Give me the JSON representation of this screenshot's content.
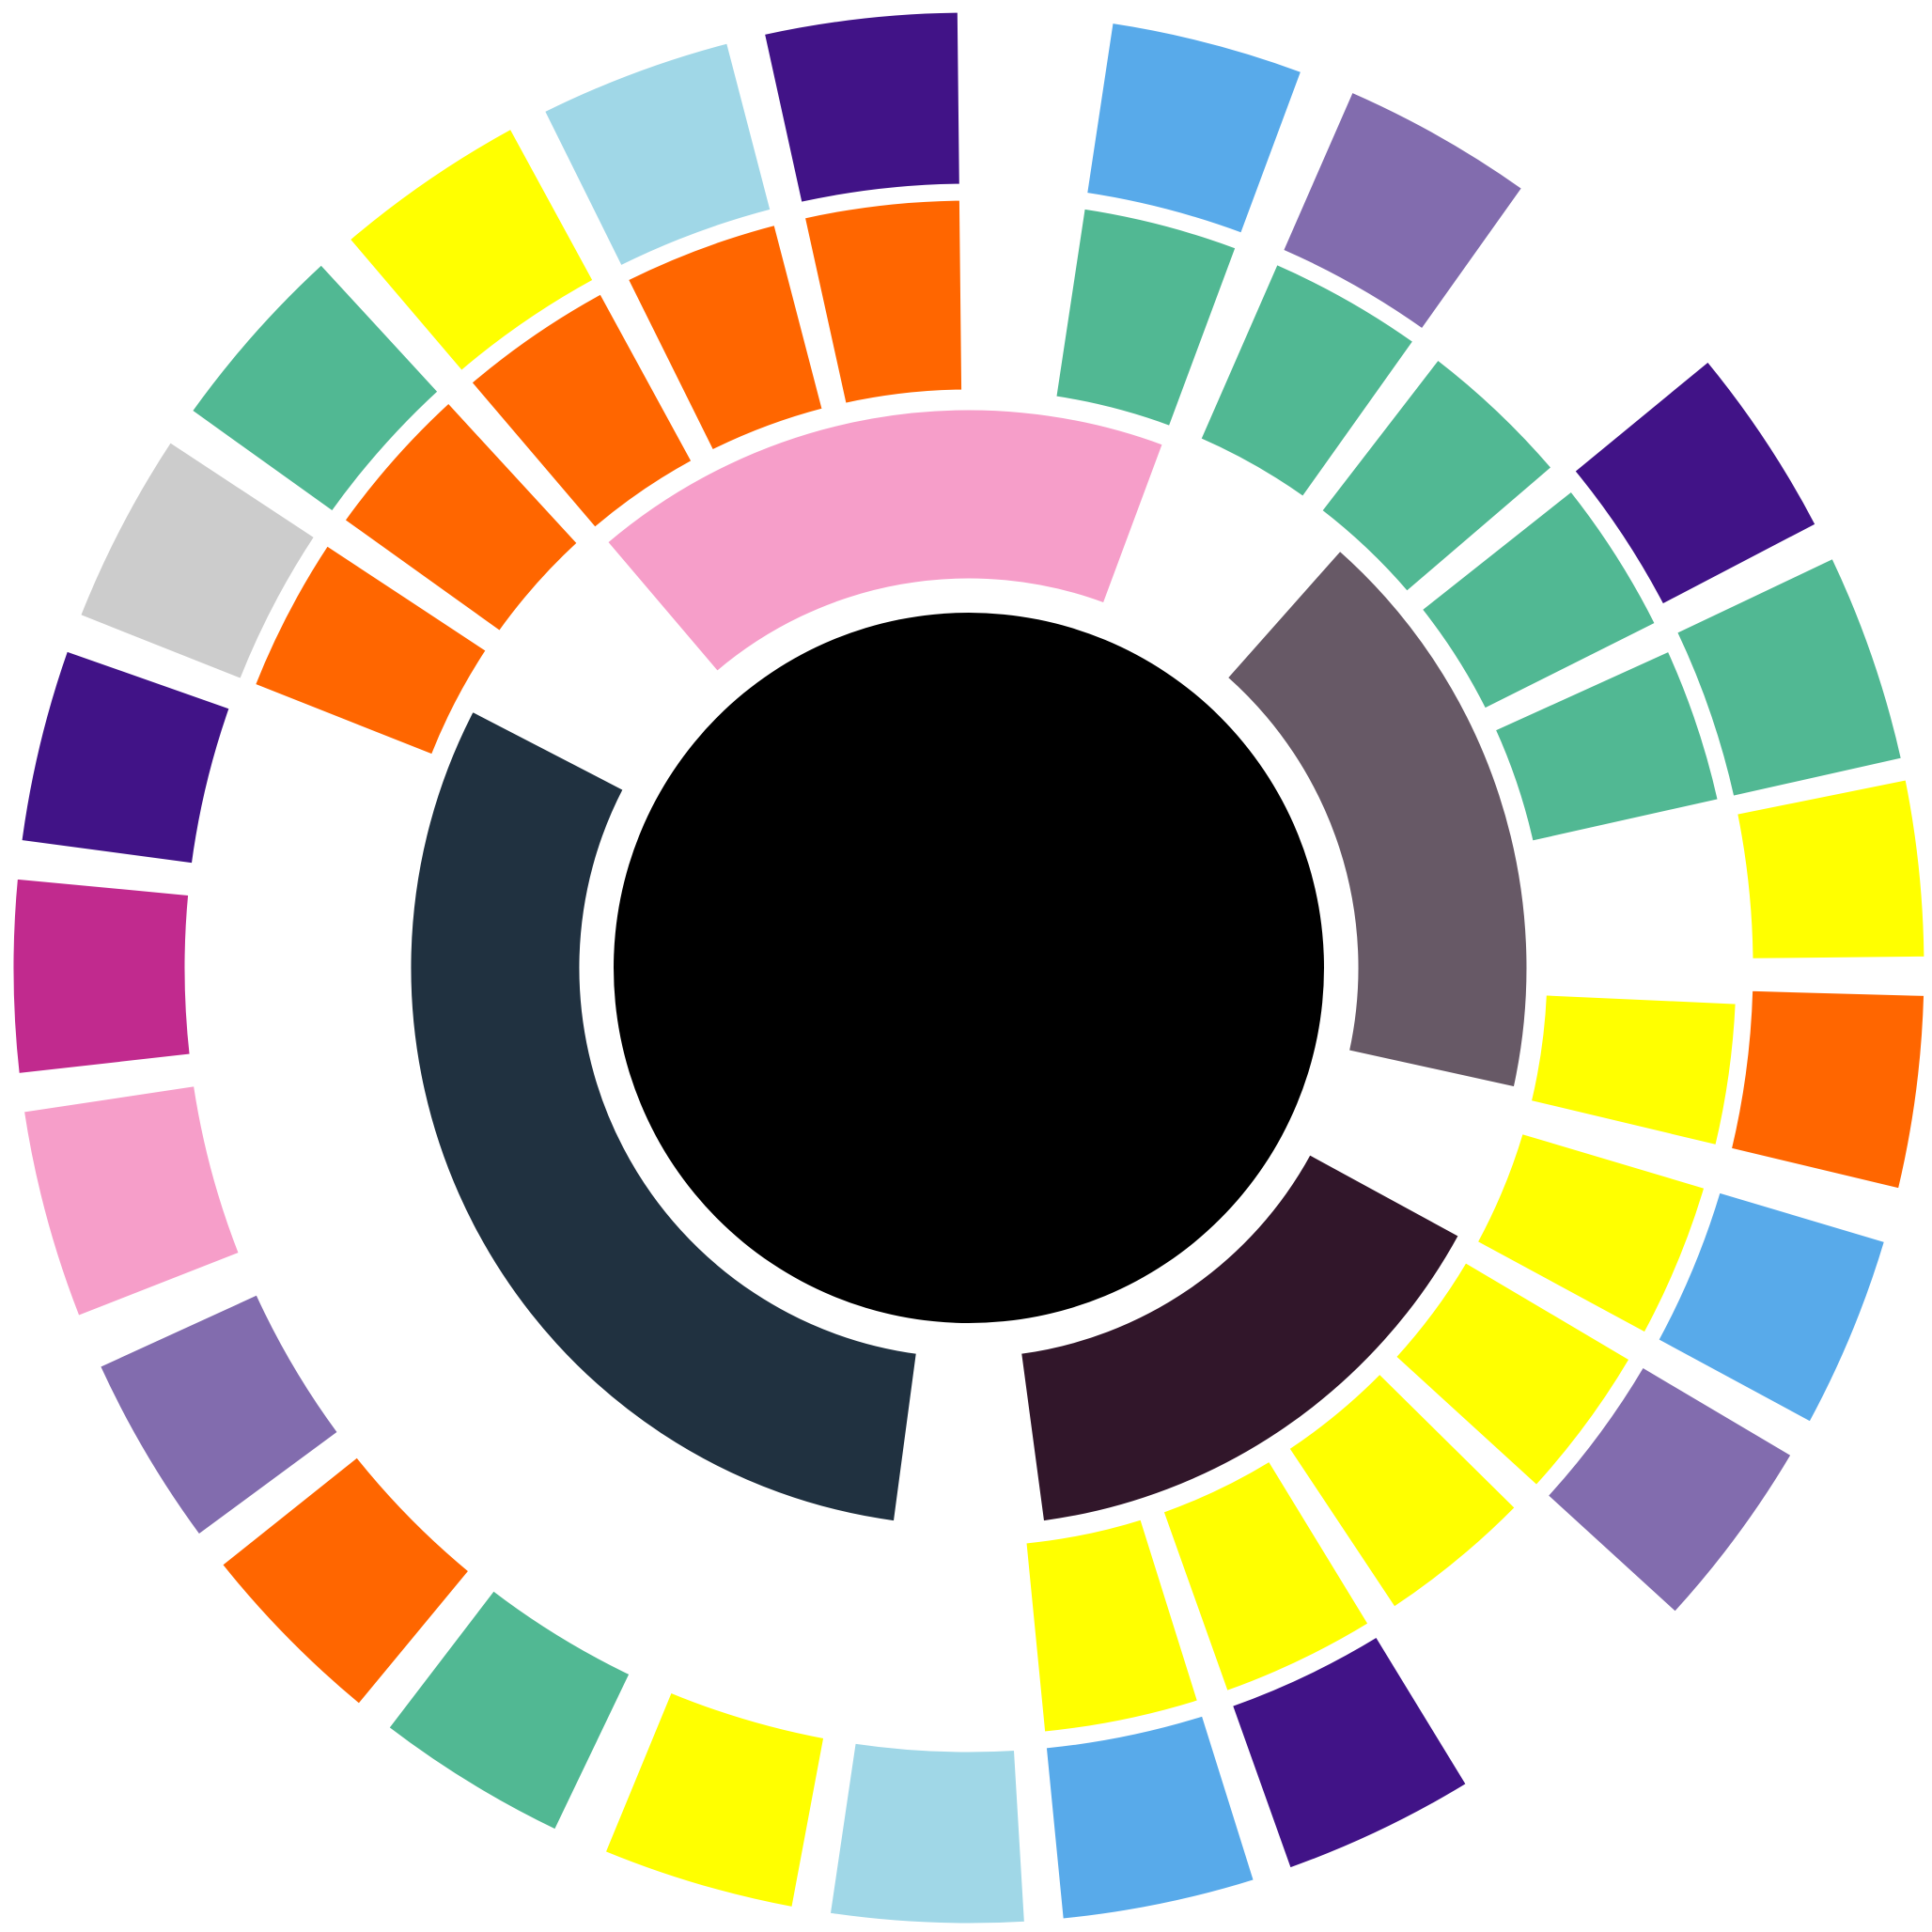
{
  "chart_data": {
    "type": "sunburst",
    "title": "",
    "labels": "none",
    "center": {
      "color": "#000000"
    },
    "palette": {
      "pink": "#f69ec9",
      "slate": "#675966",
      "navy": "#203140",
      "plum": "#31162a",
      "orange": "#ff6600",
      "teal": "#51b893",
      "yellow": "#ffff00",
      "sky": "#58aaea",
      "lilac": "#826cae",
      "indigo": "#411387",
      "powder": "#a0d7e7",
      "magenta": "#c12a8e",
      "grey": "#cccccc"
    },
    "rings": [
      {
        "level": 1,
        "segments": [
          {
            "start": 319,
            "end": 381,
            "color": "pink"
          },
          {
            "start": 41,
            "end": 103,
            "color": "slate"
          },
          {
            "start": 118,
            "end": 173,
            "color": "plum"
          },
          {
            "start": 187,
            "end": 298,
            "color": "navy"
          }
        ]
      },
      {
        "level": 2,
        "segments": [
          {
            "start": 291,
            "end": 304,
            "color": "orange"
          },
          {
            "start": 305,
            "end": 318,
            "color": "orange"
          },
          {
            "start": 319,
            "end": 332,
            "color": "orange"
          },
          {
            "start": 333,
            "end": 346,
            "color": "orange"
          },
          {
            "start": 347,
            "end": 360,
            "color": "orange"
          },
          {
            "start": 8,
            "end": 21,
            "color": "teal"
          },
          {
            "start": 23,
            "end": 36,
            "color": "teal"
          },
          {
            "start": 37,
            "end": 50,
            "color": "teal"
          },
          {
            "start": 51,
            "end": 64,
            "color": "teal"
          },
          {
            "start": 65,
            "end": 78,
            "color": "teal"
          },
          {
            "start": 92,
            "end": 104,
            "color": "yellow"
          },
          {
            "start": 106,
            "end": 119,
            "color": "yellow"
          },
          {
            "start": 120,
            "end": 133,
            "color": "yellow"
          },
          {
            "start": 134,
            "end": 147,
            "color": "yellow"
          },
          {
            "start": 148,
            "end": 161,
            "color": "yellow"
          },
          {
            "start": 162,
            "end": 175,
            "color": "yellow"
          }
        ]
      },
      {
        "level": 3,
        "segments": [
          {
            "start": 291,
            "end": 304,
            "color": "grey"
          },
          {
            "start": 305,
            "end": 318,
            "color": "teal"
          },
          {
            "start": 319,
            "end": 332,
            "color": "yellow"
          },
          {
            "start": 333,
            "end": 346,
            "color": "powder"
          },
          {
            "start": 347,
            "end": 360,
            "color": "indigo"
          },
          {
            "start": 8,
            "end": 21,
            "color": "sky"
          },
          {
            "start": 23,
            "end": 36,
            "color": "lilac"
          },
          {
            "start": 50,
            "end": 63,
            "color": "indigo"
          },
          {
            "start": 64,
            "end": 78,
            "color": "teal"
          },
          {
            "start": 78,
            "end": 90,
            "color": "yellow"
          },
          {
            "start": 91,
            "end": 104,
            "color": "orange"
          },
          {
            "start": 106,
            "end": 119,
            "color": "sky"
          },
          {
            "start": 120,
            "end": 133,
            "color": "lilac"
          },
          {
            "start": 148,
            "end": 161,
            "color": "indigo"
          },
          {
            "start": 162,
            "end": 175,
            "color": "sky"
          },
          {
            "start": 176,
            "end": 189,
            "color": "powder"
          },
          {
            "start": 190,
            "end": 203,
            "color": "yellow"
          },
          {
            "start": 205,
            "end": 218,
            "color": "teal"
          },
          {
            "start": 219,
            "end": 232,
            "color": "orange"
          },
          {
            "start": 233,
            "end": 246,
            "color": "lilac"
          },
          {
            "start": 248,
            "end": 262,
            "color": "pink"
          },
          {
            "start": 263,
            "end": 276,
            "color": "magenta"
          },
          {
            "start": 277,
            "end": 290,
            "color": "indigo"
          }
        ]
      }
    ]
  }
}
